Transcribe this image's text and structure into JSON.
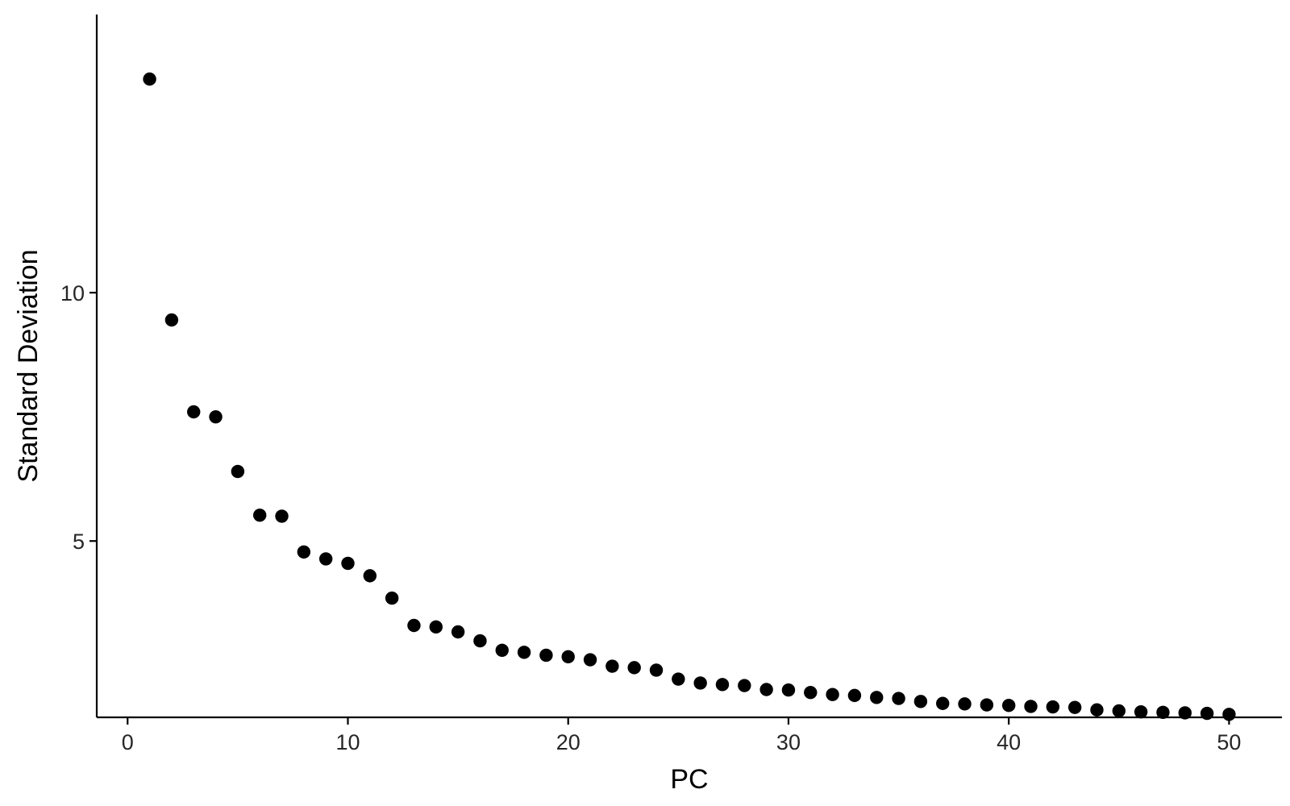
{
  "chart_data": {
    "type": "scatter",
    "title": "",
    "xlabel": "PC",
    "ylabel": "Standard Deviation",
    "xlim": [
      -1.4,
      52.4
    ],
    "ylim": [
      1.45,
      15.6
    ],
    "x_ticks": [
      0,
      10,
      20,
      30,
      40,
      50
    ],
    "y_ticks": [
      5,
      10
    ],
    "grid": false,
    "legend": "none",
    "point_color": "#000000",
    "x": [
      1,
      2,
      3,
      4,
      5,
      6,
      7,
      8,
      9,
      10,
      11,
      12,
      13,
      14,
      15,
      16,
      17,
      18,
      19,
      20,
      21,
      22,
      23,
      24,
      25,
      26,
      27,
      28,
      29,
      30,
      31,
      32,
      33,
      34,
      35,
      36,
      37,
      38,
      39,
      40,
      41,
      42,
      43,
      44,
      45,
      46,
      47,
      48,
      49,
      50
    ],
    "y": [
      14.3,
      9.45,
      7.6,
      7.5,
      6.4,
      5.52,
      5.5,
      4.78,
      4.64,
      4.55,
      4.3,
      3.85,
      3.3,
      3.27,
      3.17,
      2.99,
      2.8,
      2.76,
      2.7,
      2.67,
      2.61,
      2.48,
      2.45,
      2.4,
      2.22,
      2.14,
      2.11,
      2.09,
      2.01,
      2.0,
      1.95,
      1.91,
      1.89,
      1.85,
      1.83,
      1.77,
      1.73,
      1.72,
      1.7,
      1.69,
      1.67,
      1.66,
      1.65,
      1.6,
      1.58,
      1.56,
      1.55,
      1.54,
      1.53,
      1.51
    ]
  }
}
